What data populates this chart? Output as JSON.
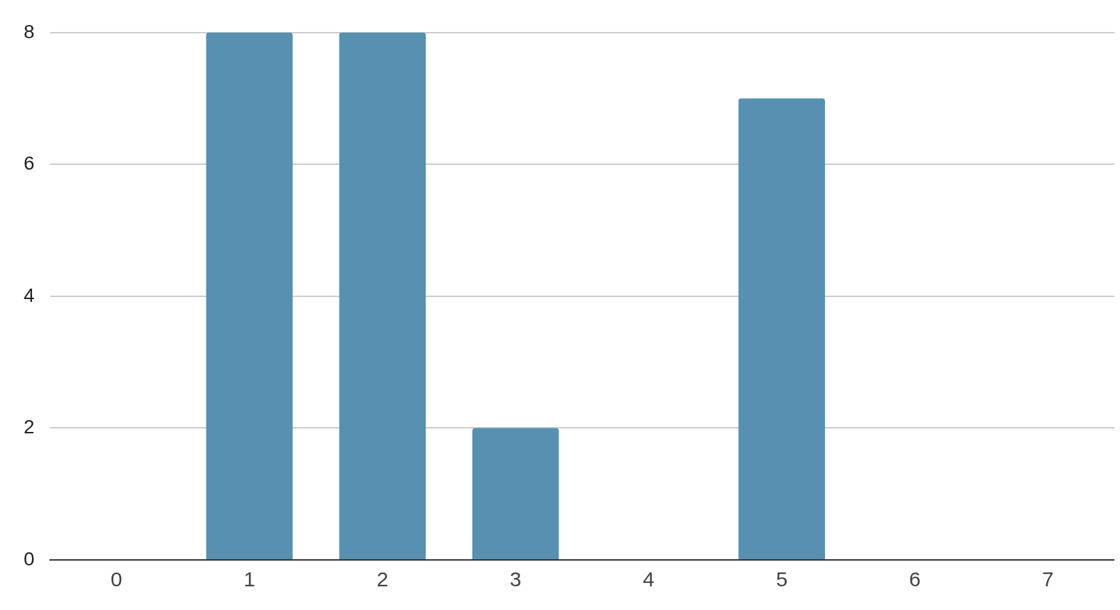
{
  "chart_data": {
    "type": "bar",
    "categories": [
      "0",
      "1",
      "2",
      "3",
      "4",
      "5",
      "6",
      "7"
    ],
    "values": [
      0,
      8,
      8,
      2,
      0,
      7,
      0,
      0
    ],
    "color": "#5790b0",
    "ylim": [
      0,
      8
    ],
    "yticks": [
      0,
      2,
      4,
      6,
      8
    ],
    "grid": "y",
    "legend": false
  }
}
